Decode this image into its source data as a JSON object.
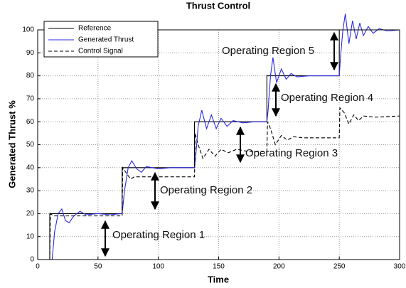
{
  "chart_data": {
    "type": "line",
    "title": "Thrust Control",
    "xlabel": "Time",
    "ylabel": "Generated Thrust %",
    "xlim": [
      0,
      300
    ],
    "xticks": [
      0,
      50,
      100,
      150,
      200,
      250,
      300
    ],
    "ylim": [
      0,
      100
    ],
    "yticks": [
      0,
      10,
      20,
      30,
      40,
      50,
      60,
      70,
      80,
      90,
      100
    ],
    "grid": true,
    "legend": "upper left",
    "series": [
      {
        "name": "Reference",
        "color": "#000000",
        "linestyle": "solid",
        "x": [
          0,
          10,
          10,
          70,
          70,
          130,
          130,
          190,
          190,
          250,
          250,
          300
        ],
        "values": [
          0,
          0,
          20,
          20,
          40,
          40,
          60,
          60,
          80,
          80,
          100,
          100
        ]
      },
      {
        "name": "Generated Thrust",
        "color": "#2a2ae0",
        "linestyle": "solid",
        "x": [
          0,
          12,
          14,
          17,
          20,
          23,
          26,
          30,
          35,
          40,
          50,
          60,
          70,
          72,
          75,
          78,
          82,
          86,
          90,
          95,
          100,
          110,
          120,
          130,
          131,
          133,
          136,
          140,
          144,
          148,
          152,
          157,
          162,
          170,
          180,
          190,
          191,
          193,
          195,
          198,
          202,
          206,
          210,
          215,
          225,
          240,
          250,
          251,
          253,
          255,
          258,
          261,
          264,
          267,
          270,
          274,
          278,
          283,
          290,
          300
        ],
        "values": [
          0,
          0,
          12,
          20,
          22,
          17,
          16,
          19,
          21,
          19.5,
          20,
          19.5,
          20,
          30,
          40,
          43,
          39.5,
          38,
          40.5,
          40,
          39.5,
          40,
          40,
          40,
          45,
          58,
          65,
          57,
          63,
          57,
          61.5,
          58,
          60.5,
          59.5,
          60,
          60,
          65,
          80,
          88,
          77,
          83,
          78.5,
          81,
          79.5,
          80,
          80,
          80,
          88,
          100,
          107,
          94,
          104,
          96,
          103,
          97.5,
          101.5,
          98.5,
          100.5,
          99.5,
          100
        ]
      },
      {
        "name": "Control Signal",
        "color": "#000000",
        "linestyle": "dashed",
        "x": [
          0,
          10,
          10.5,
          13,
          30,
          70,
          70.5,
          73,
          77,
          80,
          130,
          130.5,
          133,
          137,
          142,
          147,
          152,
          158,
          165,
          175,
          190,
          190.5,
          193,
          197,
          202,
          207,
          212,
          220,
          250,
          250.5,
          254,
          258,
          262,
          266,
          270,
          280,
          300
        ],
        "values": [
          0,
          0,
          20,
          19,
          19,
          19,
          40,
          38,
          35,
          36,
          36,
          55,
          50,
          44,
          48,
          45,
          48,
          46.5,
          48,
          47,
          47,
          60,
          57,
          50,
          54,
          52,
          53.5,
          53,
          53,
          66,
          64,
          59,
          63,
          60.5,
          62.5,
          62,
          62.5
        ]
      }
    ],
    "annotations": [
      "Operating Region 1",
      "Operating Region 2",
      "Operating Region 3",
      "Operating Region 4",
      "Operating Region 5"
    ]
  }
}
